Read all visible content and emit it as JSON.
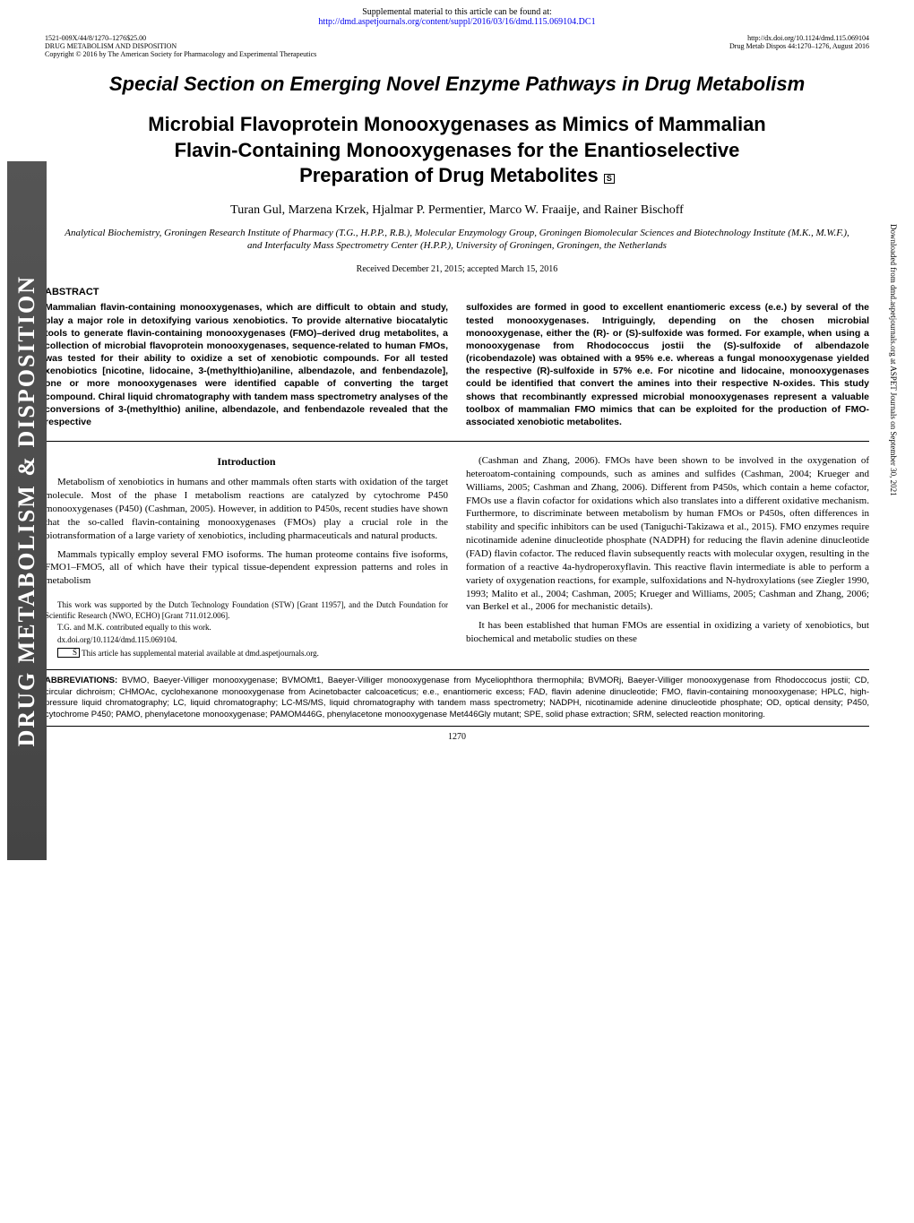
{
  "supplemental": {
    "line1": "Supplemental material to this article can be found at:",
    "link": "http://dmd.aspetjournals.org/content/suppl/2016/03/16/dmd.115.069104.DC1"
  },
  "meta": {
    "issn": "1521-009X/44/8/1270–1276$25.00",
    "journal": "DRUG METABOLISM AND DISPOSITION",
    "copyright": "Copyright © 2016 by The American Society for Pharmacology and Experimental Therapeutics",
    "doi": "http://dx.doi.org/10.1124/dmd.115.069104",
    "citation": "Drug Metab Dispos 44:1270–1276, August 2016"
  },
  "section_title": "Special Section on Emerging Novel Enzyme Pathways in Drug Metabolism",
  "title_line1": "Microbial Flavoprotein Monooxygenases as Mimics of Mammalian",
  "title_line2": "Flavin-Containing Monooxygenases for the Enantioselective",
  "title_line3": "Preparation of Drug Metabolites",
  "authors": "Turan Gul, Marzena Krzek, Hjalmar P. Permentier, Marco W. Fraaije, and Rainer Bischoff",
  "affiliation": "Analytical Biochemistry, Groningen Research Institute of Pharmacy (T.G., H.P.P., R.B.), Molecular Enzymology Group, Groningen Biomolecular Sciences and Biotechnology Institute (M.K., M.W.F.), and Interfaculty Mass Spectrometry Center (H.P.P.), University of Groningen, Groningen, the Netherlands",
  "received": "Received December 21, 2015; accepted March 15, 2016",
  "abstract_heading": "ABSTRACT",
  "abstract_left": "Mammalian flavin-containing monooxygenases, which are difficult to obtain and study, play a major role in detoxifying various xenobiotics. To provide alternative biocatalytic tools to generate flavin-containing monooxygenases (FMO)–derived drug metabolites, a collection of microbial flavoprotein monooxygenases, sequence-related to human FMOs, was tested for their ability to oxidize a set of xenobiotic compounds. For all tested xenobiotics [nicotine, lidocaine, 3-(methylthio)aniline, albendazole, and fenbendazole], one or more monooxygenases were identified capable of converting the target compound. Chiral liquid chromatography with tandem mass spectrometry analyses of the conversions of 3-(methylthio) aniline, albendazole, and fenbendazole revealed that the respective",
  "abstract_right": "sulfoxides are formed in good to excellent enantiomeric excess (e.e.) by several of the tested monooxygenases. Intriguingly, depending on the chosen microbial monooxygenase, either the (R)- or (S)-sulfoxide was formed. For example, when using a monooxygenase from Rhodococcus jostii the (S)-sulfoxide of albendazole (ricobendazole) was obtained with a 95% e.e. whereas a fungal monooxygenase yielded the respective (R)-sulfoxide in 57% e.e. For nicotine and lidocaine, monooxygenases could be identified that convert the amines into their respective N-oxides. This study shows that recombinantly expressed microbial monooxygenases represent a valuable toolbox of mammalian FMO mimics that can be exploited for the production of FMO-associated xenobiotic metabolites.",
  "intro_heading": "Introduction",
  "intro_p1": "Metabolism of xenobiotics in humans and other mammals often starts with oxidation of the target molecule. Most of the phase I metabolism reactions are catalyzed by cytochrome P450 monooxygenases (P450) (Cashman, 2005). However, in addition to P450s, recent studies have shown that the so-called flavin-containing monooxygenases (FMOs) play a crucial role in the biotransformation of a large variety of xenobiotics, including pharmaceuticals and natural products.",
  "intro_p2": "Mammals typically employ several FMO isoforms. The human proteome contains five isoforms, FMO1–FMO5, all of which have their typical tissue-dependent expression patterns and roles in metabolism",
  "footnote1": "This work was supported by the Dutch Technology Foundation (STW) [Grant 11957], and the Dutch Foundation for Scientific Research (NWO, ECHO) [Grant 711.012.006].",
  "footnote2": "T.G. and M.K. contributed equally to this work.",
  "footnote3": "dx.doi.org/10.1124/dmd.115.069104.",
  "footnote4": "This article has supplemental material available at dmd.aspetjournals.org.",
  "right_p1": "(Cashman and Zhang, 2006). FMOs have been shown to be involved in the oxygenation of heteroatom-containing compounds, such as amines and sulfides (Cashman, 2004; Krueger and Williams, 2005; Cashman and Zhang, 2006). Different from P450s, which contain a heme cofactor, FMOs use a flavin cofactor for oxidations which also translates into a different oxidative mechanism. Furthermore, to discriminate between metabolism by human FMOs or P450s, often differences in stability and specific inhibitors can be used (Taniguchi-Takizawa et al., 2015). FMO enzymes require nicotinamide adenine dinucleotide phosphate (NADPH) for reducing the flavin adenine dinucleotide (FAD) flavin cofactor. The reduced flavin subsequently reacts with molecular oxygen, resulting in the formation of a reactive 4a-hydroperoxyflavin. This reactive flavin intermediate is able to perform a variety of oxygenation reactions, for example, sulfoxidations and N-hydroxylations (see Ziegler 1990, 1993; Malito et al., 2004; Cashman, 2005; Krueger and Williams, 2005; Cashman and Zhang, 2006; van Berkel et al., 2006 for mechanistic details).",
  "right_p2": "It has been established that human FMOs are essential in oxidizing a variety of xenobiotics, but biochemical and metabolic studies on these",
  "abbrev_label": "ABBREVIATIONS:",
  "abbreviations": "BVMO, Baeyer-Villiger monooxygenase; BVMOMt1, Baeyer-Villiger monooxygenase from Myceliophthora thermophila; BVMORj, Baeyer-Villiger monooxygenase from Rhodoccocus jostii; CD, circular dichroism; CHMOAc, cyclohexanone monooxygenase from Acinetobacter calcoaceticus; e.e., enantiomeric excess; FAD, flavin adenine dinucleotide; FMO, flavin-containing monooxygenase; HPLC, high-pressure liquid chromatography; LC, liquid chromatography; LC-MS/MS, liquid chromatography with tandem mass spectrometry; NADPH, nicotinamide adenine dinucleotide phosphate; OD, optical density; P450, cytochrome P450; PAMO, phenylacetone monooxygenase; PAMOM446G, phenylacetone monooxygenase Met446Gly mutant; SPE, solid phase extraction; SRM, selected reaction monitoring.",
  "page_number": "1270",
  "side_banner": "DRUG METABOLISM & DISPOSITION",
  "side_text": "Downloaded from dmd.aspetjournals.org at ASPET Journals on September 30, 2021",
  "s_mark": "S"
}
